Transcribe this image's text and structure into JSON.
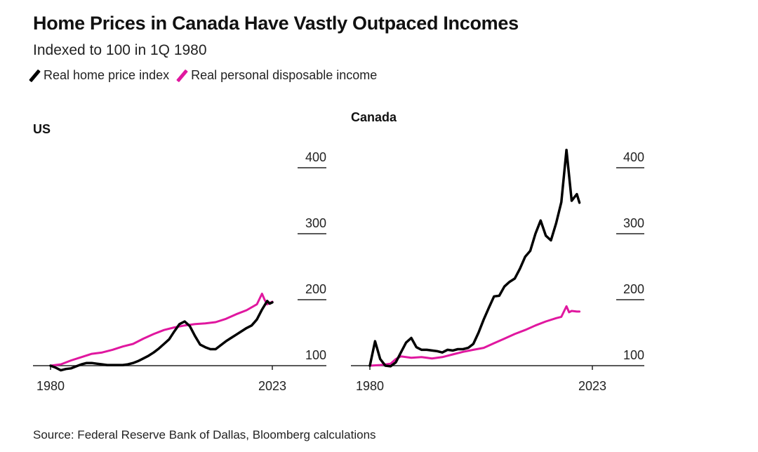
{
  "title": "Home Prices in Canada Have Vastly Outpaced Incomes",
  "subtitle": "Indexed to 100 in 1Q 1980",
  "legend": {
    "home_price_label": "Real home price index",
    "income_label": "Real personal disposable income",
    "home_price_color": "#000000",
    "income_color": "#e0179f"
  },
  "source": "Source: Federal Reserve Bank of Dallas, Bloomberg calculations",
  "chart_data": [
    {
      "type": "line",
      "panel_title": "US",
      "xlim": [
        1980,
        2023
      ],
      "ylim": [
        100,
        420
      ],
      "x_tick_labels": [
        "1980",
        "2023"
      ],
      "y_ticks": [
        100,
        200,
        300,
        400
      ],
      "series": [
        {
          "name": "Real home price index",
          "color": "#000000",
          "points": [
            [
              1980,
              100
            ],
            [
              1981,
              97
            ],
            [
              1982,
              93
            ],
            [
              1983,
              95
            ],
            [
              1984,
              96
            ],
            [
              1985,
              99
            ],
            [
              1986,
              102
            ],
            [
              1987,
              104
            ],
            [
              1988,
              104
            ],
            [
              1989,
              103
            ],
            [
              1990,
              102
            ],
            [
              1991,
              101
            ],
            [
              1992,
              101
            ],
            [
              1993,
              101
            ],
            [
              1994,
              101
            ],
            [
              1995,
              102
            ],
            [
              1996,
              104
            ],
            [
              1997,
              107
            ],
            [
              1998,
              111
            ],
            [
              1999,
              115
            ],
            [
              2000,
              120
            ],
            [
              2001,
              126
            ],
            [
              2002,
              133
            ],
            [
              2003,
              140
            ],
            [
              2004,
              152
            ],
            [
              2005,
              163
            ],
            [
              2006,
              167
            ],
            [
              2007,
              160
            ],
            [
              2008,
              145
            ],
            [
              2009,
              132
            ],
            [
              2010,
              128
            ],
            [
              2011,
              125
            ],
            [
              2012,
              125
            ],
            [
              2013,
              131
            ],
            [
              2014,
              137
            ],
            [
              2015,
              142
            ],
            [
              2016,
              147
            ],
            [
              2017,
              152
            ],
            [
              2018,
              157
            ],
            [
              2019,
              161
            ],
            [
              2020,
              170
            ],
            [
              2021,
              185
            ],
            [
              2022,
              198
            ],
            [
              2022.5,
              194
            ],
            [
              2023,
              196
            ]
          ]
        },
        {
          "name": "Real personal disposable income",
          "color": "#e0179f",
          "points": [
            [
              1980,
              100
            ],
            [
              1982,
              102
            ],
            [
              1984,
              108
            ],
            [
              1986,
              113
            ],
            [
              1988,
              118
            ],
            [
              1990,
              120
            ],
            [
              1992,
              124
            ],
            [
              1994,
              129
            ],
            [
              1996,
              133
            ],
            [
              1998,
              141
            ],
            [
              2000,
              148
            ],
            [
              2002,
              154
            ],
            [
              2004,
              158
            ],
            [
              2006,
              161
            ],
            [
              2008,
              163
            ],
            [
              2010,
              164
            ],
            [
              2012,
              166
            ],
            [
              2014,
              171
            ],
            [
              2016,
              178
            ],
            [
              2018,
              184
            ],
            [
              2020,
              193
            ],
            [
              2021,
              209
            ],
            [
              2021.5,
              200
            ],
            [
              2022,
              193
            ],
            [
              2023,
              197
            ]
          ]
        }
      ]
    },
    {
      "type": "line",
      "panel_title": "Canada",
      "xlim": [
        1980,
        2023
      ],
      "ylim": [
        100,
        430
      ],
      "x_tick_labels": [
        "1980",
        "2023"
      ],
      "y_ticks": [
        100,
        200,
        300,
        400
      ],
      "series": [
        {
          "name": "Real home price index",
          "color": "#000000",
          "points": [
            [
              1980,
              100
            ],
            [
              1981,
              137
            ],
            [
              1982,
              110
            ],
            [
              1983,
              100
            ],
            [
              1984,
              99
            ],
            [
              1985,
              105
            ],
            [
              1986,
              120
            ],
            [
              1987,
              135
            ],
            [
              1988,
              142
            ],
            [
              1989,
              128
            ],
            [
              1990,
              124
            ],
            [
              1991,
              124
            ],
            [
              1992,
              123
            ],
            [
              1993,
              122
            ],
            [
              1994,
              120
            ],
            [
              1995,
              124
            ],
            [
              1996,
              123
            ],
            [
              1997,
              125
            ],
            [
              1998,
              125
            ],
            [
              1999,
              127
            ],
            [
              2000,
              133
            ],
            [
              2001,
              150
            ],
            [
              2002,
              170
            ],
            [
              2003,
              188
            ],
            [
              2004,
              205
            ],
            [
              2005,
              206
            ],
            [
              2006,
              220
            ],
            [
              2007,
              227
            ],
            [
              2008,
              232
            ],
            [
              2009,
              247
            ],
            [
              2010,
              265
            ],
            [
              2011,
              274
            ],
            [
              2012,
              300
            ],
            [
              2013,
              320
            ],
            [
              2014,
              297
            ],
            [
              2015,
              290
            ],
            [
              2016,
              316
            ],
            [
              2017,
              348
            ],
            [
              2018,
              427
            ],
            [
              2019,
              350
            ],
            [
              2020,
              360
            ],
            [
              2020.5,
              347
            ]
          ]
        },
        {
          "name": "Real personal disposable income",
          "color": "#e0179f",
          "points": [
            [
              1980,
              100
            ],
            [
              1982,
              101
            ],
            [
              1984,
              103
            ],
            [
              1985,
              110
            ],
            [
              1986,
              114
            ],
            [
              1988,
              112
            ],
            [
              1990,
              113
            ],
            [
              1992,
              111
            ],
            [
              1994,
              113
            ],
            [
              1996,
              117
            ],
            [
              1998,
              121
            ],
            [
              2000,
              124
            ],
            [
              2002,
              127
            ],
            [
              2004,
              134
            ],
            [
              2006,
              141
            ],
            [
              2008,
              148
            ],
            [
              2010,
              154
            ],
            [
              2012,
              161
            ],
            [
              2014,
              167
            ],
            [
              2016,
              172
            ],
            [
              2017,
              174
            ],
            [
              2018,
              190
            ],
            [
              2018.5,
              181
            ],
            [
              2019,
              183
            ],
            [
              2020,
              182
            ],
            [
              2020.5,
              182
            ]
          ]
        }
      ]
    }
  ]
}
